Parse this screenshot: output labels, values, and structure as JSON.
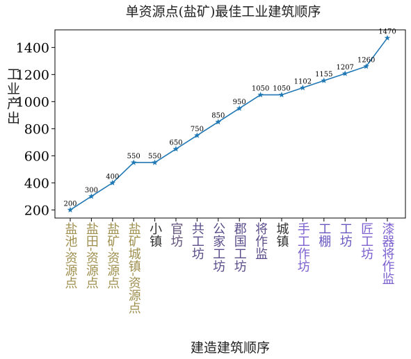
{
  "chart_data": {
    "type": "line",
    "title": "单资源点(盐矿)最佳工业建筑顺序",
    "xlabel": "建造建筑顺序",
    "ylabel": "工业产出",
    "categories": [
      "盐池-资源点",
      "盐田-资源点",
      "盐矿-资源点",
      "盐矿城镇-资源点",
      "小镇",
      "官坊",
      "共工坊",
      "公家工坊",
      "郡国工坊",
      "将作监",
      "城镇",
      "手工作坊",
      "工棚",
      "工坊",
      "匠工坊",
      "漆器将作监"
    ],
    "values": [
      200,
      300,
      400,
      550,
      550,
      650,
      750,
      850,
      950,
      1050,
      1050,
      1102,
      1155,
      1207,
      1260,
      1470
    ],
    "value_labels": [
      "200",
      "300",
      "400",
      "550",
      "550",
      "650",
      "750",
      "850",
      "950",
      "1050",
      "1050",
      "1102",
      "1155",
      "1207",
      "1260",
      "1470"
    ],
    "category_colors": [
      "#a09050",
      "#a09050",
      "#a09050",
      "#a09050",
      "#303030",
      "#60507a",
      "#5a4c8a",
      "#5a4c8a",
      "#5a4c8a",
      "#5a4c8a",
      "#303030",
      "#7b5fcf",
      "#6a58c0",
      "#6a58c0",
      "#7b5fcf",
      "#7b5fcf"
    ],
    "yticks": [
      200,
      400,
      600,
      800,
      1000,
      1200,
      1400
    ],
    "ylim": [
      140,
      1530
    ],
    "marker": "star",
    "line_color": "#1f77b4",
    "grid": false
  }
}
